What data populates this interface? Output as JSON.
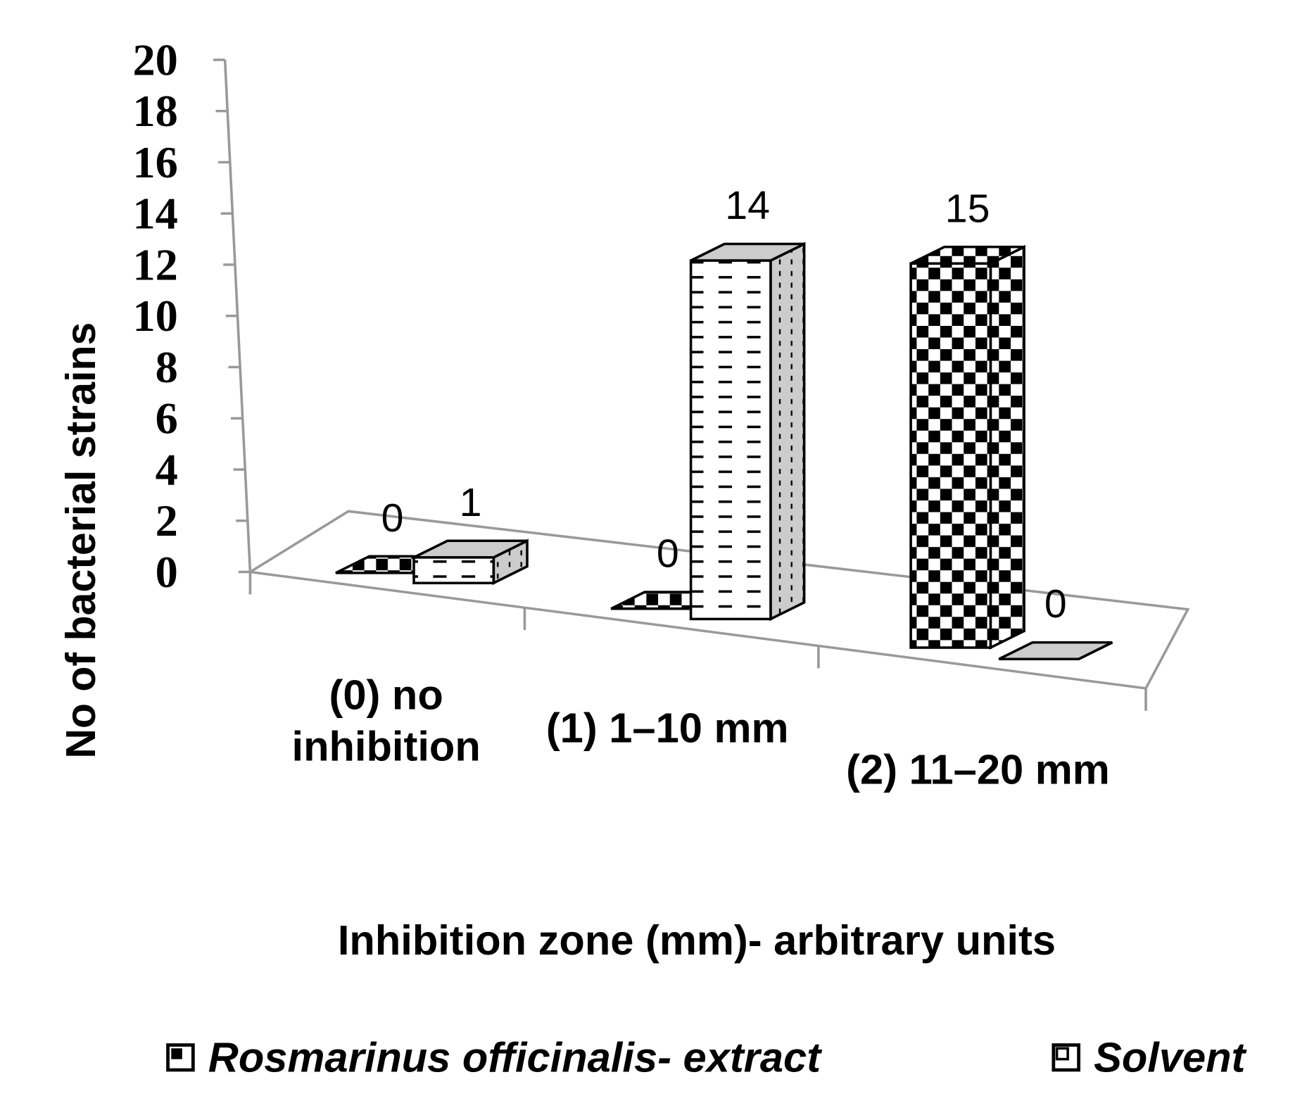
{
  "chart_data": {
    "type": "bar3d",
    "y_label": "No of bacterial strains",
    "x_label": "Inhibition zone (mm)- arbitrary units",
    "categories": [
      "(0) no inhibition",
      "(1) 1–10 mm",
      "(2) 11–20 mm"
    ],
    "series": [
      {
        "name": "Rosmarinus officinalis- extract",
        "color": "#000000",
        "values": [
          0,
          0,
          15
        ]
      },
      {
        "name": "Solvent",
        "color": "#ffffff",
        "values": [
          1,
          14,
          0
        ]
      }
    ],
    "ylim": [
      0,
      20
    ],
    "yticks": [
      0,
      2,
      4,
      6,
      8,
      10,
      12,
      14,
      16,
      18,
      20
    ],
    "legend": "bottom"
  }
}
